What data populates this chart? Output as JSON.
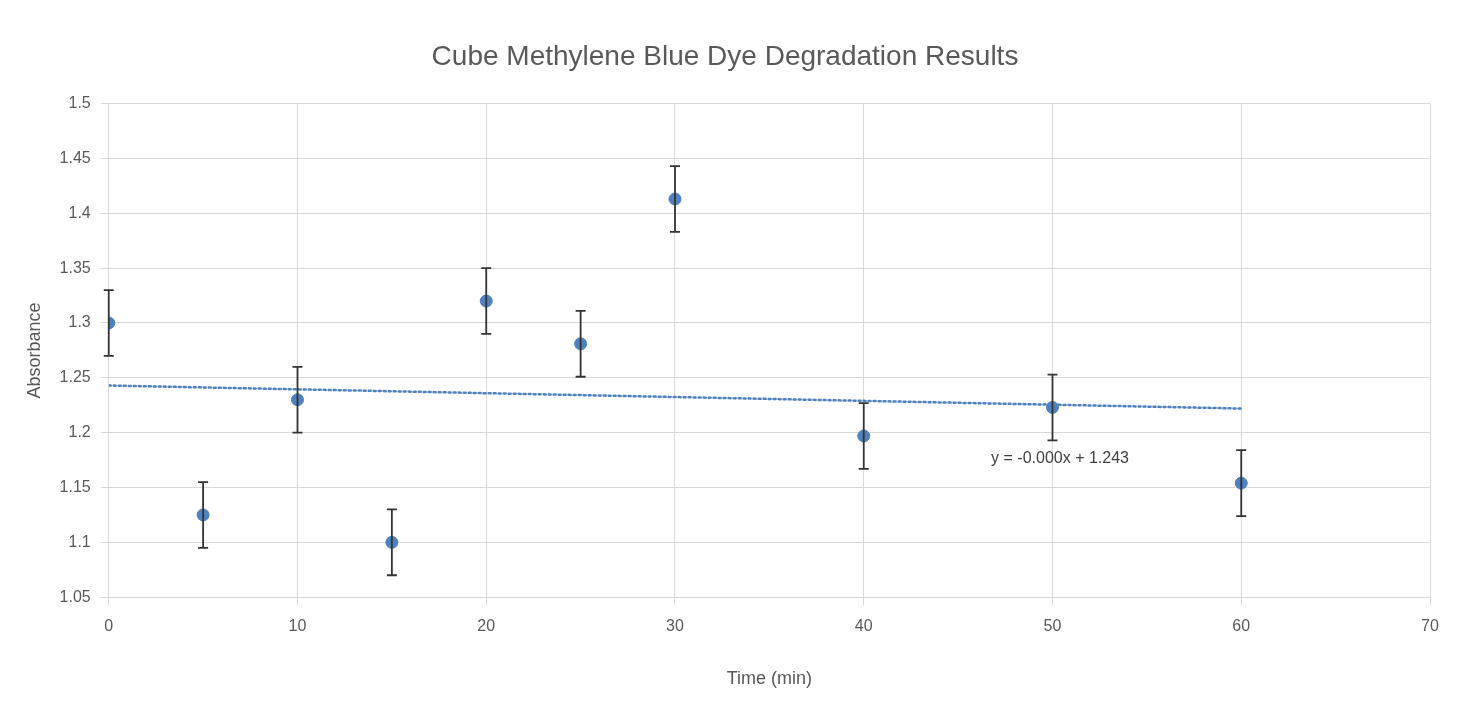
{
  "chart_data": {
    "type": "scatter",
    "title": "Cube Methylene Blue Dye Degradation Results",
    "xlabel": "Time (min)",
    "ylabel": "Absorbance",
    "x": [
      0,
      5,
      10,
      15,
      20,
      25,
      30,
      40,
      50,
      60
    ],
    "series": [
      {
        "color": "#4f81bd",
        "marker": "circle",
        "values": [
          1.3,
          1.125,
          1.23,
          1.1,
          1.32,
          1.281,
          1.413,
          1.197,
          1.223,
          1.154
        ],
        "errors": [
          0.03,
          0.03,
          0.03,
          0.03,
          0.03,
          0.03,
          0.03,
          0.03,
          0.03,
          0.03
        ]
      },
      {
        "type": "line",
        "color": "#4f81bd",
        "line_style": "dotted",
        "marker": "none",
        "x": [
          0,
          60
        ],
        "values": [
          1.243,
          1.222
        ]
      }
    ],
    "annotations": [
      "y = -0.000x + 1.243"
    ],
    "xlim": [
      0,
      70
    ],
    "xticks": [
      0,
      10,
      20,
      30,
      40,
      50,
      60,
      70
    ],
    "ylim": [
      1.05,
      1.5
    ],
    "yticks": [
      1.05,
      1.1,
      1.15,
      1.2,
      1.25,
      1.3,
      1.35,
      1.4,
      1.45,
      1.5
    ],
    "grid": true,
    "legend": false
  }
}
